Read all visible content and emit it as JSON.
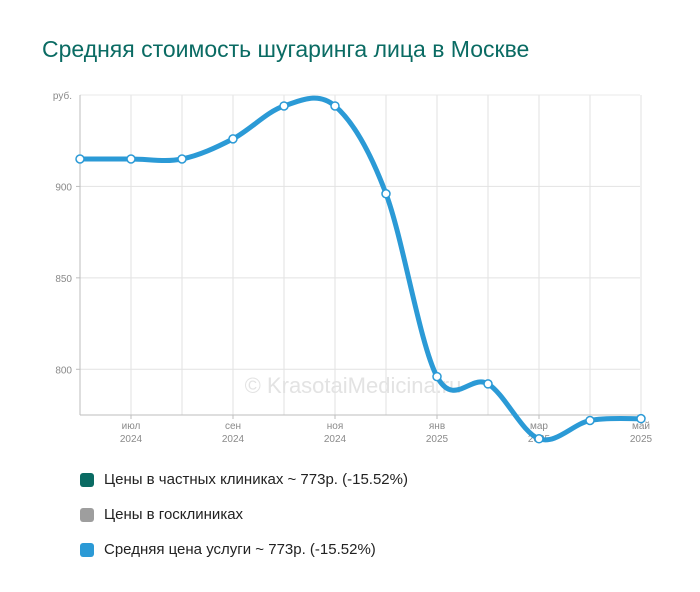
{
  "chart_data": {
    "type": "line",
    "title": "Средняя стоимость шугаринга лица в Москве",
    "y_unit_label": "руб.",
    "y_ticks": [
      800,
      850,
      900
    ],
    "ylim": [
      775,
      950
    ],
    "x_ticks": [
      {
        "month": "июл",
        "year": "2024"
      },
      {
        "month": "сен",
        "year": "2024"
      },
      {
        "month": "ноя",
        "year": "2024"
      },
      {
        "month": "янв",
        "year": "2025"
      },
      {
        "month": "мар",
        "year": "2025"
      },
      {
        "month": "май",
        "year": "2025"
      }
    ],
    "grid": true,
    "legend_position": "bottom",
    "series": [
      {
        "name": "Цены в частных клиниках ~ 773р. (-15.52%)",
        "color": "#0a6b63",
        "values": []
      },
      {
        "name": "Цены в госклиниках",
        "color": "#9e9e9e",
        "values": []
      },
      {
        "name": "Средняя цена услуги ~ 773р. (-15.52%)",
        "color": "#2b9ad6",
        "x": [
          "2024-06",
          "2024-07",
          "2024-08",
          "2024-09",
          "2024-10",
          "2024-11",
          "2024-12",
          "2025-01",
          "2025-02",
          "2025-03",
          "2025-04",
          "2025-05"
        ],
        "values": [
          915,
          915,
          915,
          926,
          944,
          944,
          896,
          796,
          792,
          762,
          772,
          773
        ]
      }
    ]
  },
  "watermark": "© KrasotaiMedicina.ru"
}
